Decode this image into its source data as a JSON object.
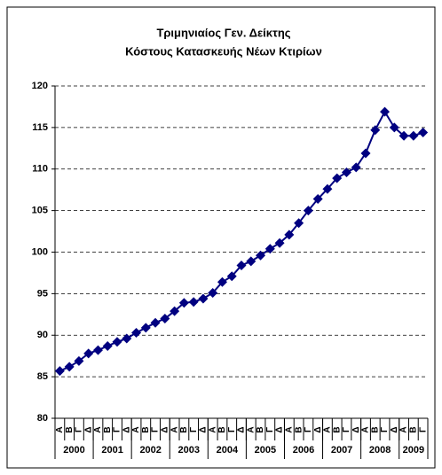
{
  "chart_data": {
    "type": "line",
    "title": [
      "Τριμηνιαίος Γεν. Δείκτης",
      "Κόστους Κατασκευής Νέων Κτιρίων"
    ],
    "categories": [
      "Α",
      "Β",
      "Γ",
      "Δ",
      "Α",
      "Β",
      "Γ",
      "Δ",
      "Α",
      "Β",
      "Γ",
      "Δ",
      "Α",
      "Β",
      "Γ",
      "Δ",
      "Α",
      "Β",
      "Γ",
      "Δ",
      "Α",
      "Β",
      "Γ",
      "Δ",
      "Α",
      "Β",
      "Γ",
      "Δ",
      "Α",
      "Β",
      "Γ",
      "Δ",
      "Α",
      "Β",
      "Γ",
      "Δ",
      "Α",
      "Β",
      "Γ"
    ],
    "groups": [
      "2000",
      "2001",
      "2002",
      "2003",
      "2004",
      "2005",
      "2006",
      "2007",
      "2008",
      "2009"
    ],
    "series": [
      {
        "color": "#000080",
        "values": [
          85.7,
          86.2,
          86.9,
          87.8,
          88.2,
          88.7,
          89.2,
          89.6,
          90.3,
          90.9,
          91.5,
          92.0,
          92.9,
          93.9,
          94.0,
          94.4,
          95.1,
          96.4,
          97.1,
          98.4,
          98.9,
          99.6,
          100.4,
          101.1,
          102.1,
          103.5,
          105.0,
          106.4,
          107.6,
          108.9,
          109.6,
          110.2,
          111.9,
          114.7,
          116.9,
          115.0,
          114.0,
          114.0,
          114.4
        ]
      }
    ],
    "ylim": [
      80,
      120
    ],
    "yticks": [
      80,
      85,
      90,
      95,
      100,
      105,
      110,
      115,
      120
    ],
    "grid": true
  }
}
